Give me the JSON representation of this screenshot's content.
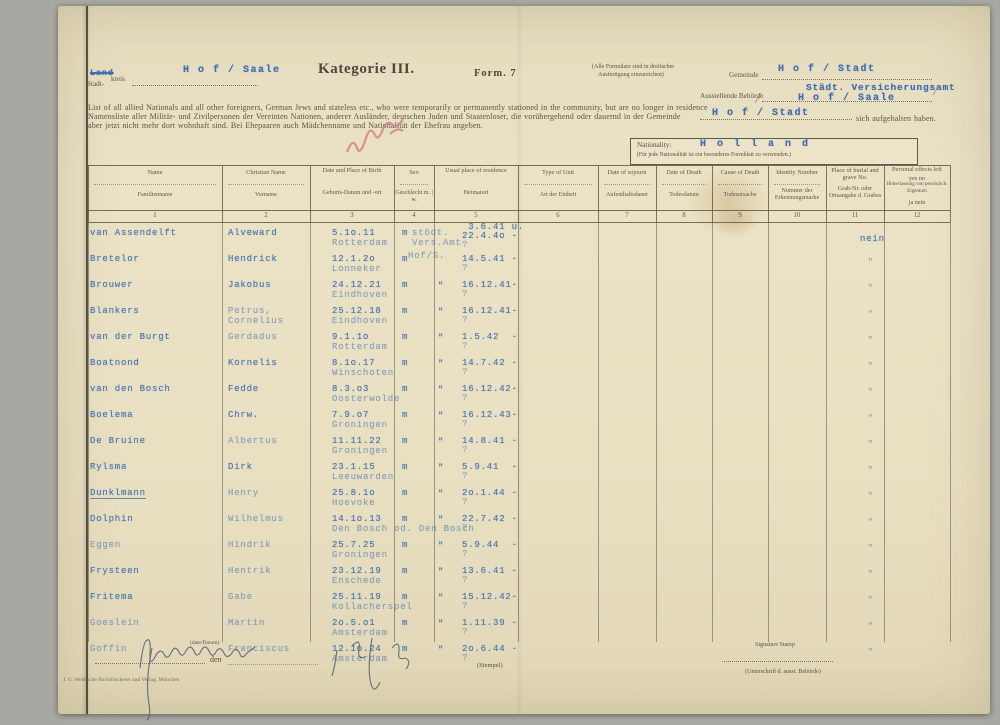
{
  "form": {
    "region_label_struck": "Land",
    "region_label_part1": "Stadt-",
    "region_label_part2": "kreis",
    "region_value": "H o f / Saale",
    "title": "Kategorie III.",
    "form_no": "Form. 7",
    "copies_note_line1": "(Alle Formulare sind in dreifacher",
    "copies_note_line2": "Ausfertigung einzureichen)",
    "gemeinde_label": "Gemeinde",
    "gemeinde_value": "H o f / Stadt",
    "behoerde_label": "Ausstellende Behörde",
    "behoerde_value_line1": "Städt. Versicherungsamt",
    "behoerde_value_line2": "H o f / Saale",
    "intro_en": "List of all allied Nationals and all other foreigners, German Jews and stateless etc., who were temporarily or permanently stationed in the community, but are no longer in residence",
    "intro_de": "Namensliste aller Militär- und Zivilpersonen der Vereinten Nationen, anderer Ausländer, deutschen Juden und Staatenloser, die vorübergehend oder dauernd in der Gemeinde",
    "intro_gemeinde_value": "H o f / Stadt",
    "intro_tail": "sich aufgehalten haben.",
    "intro_de2": "aber jetzt nicht mehr dort wohnhaft sind. Bei Ehepaaren auch Mädchenname und Nationalität der Ehefrau angeben.",
    "nationality_label": "Nationality:",
    "nationality_value": "H o l l a n d",
    "nationality_note": "(Für jede Nationalität ist ein besonderes Formblatt zu verwenden.)"
  },
  "table": {
    "columns": [
      {
        "en": "Name",
        "de": "Familienname",
        "num": "1"
      },
      {
        "en": "Christian Name",
        "de": "Vorname",
        "num": "2"
      },
      {
        "en": "Date and Place of Birth",
        "de": "Geburts-Datum und -ort",
        "num": "3"
      },
      {
        "en": "Sex",
        "de": "Geschlecht m. | w.",
        "num": "4"
      },
      {
        "en": "Usual place of residence",
        "de": "Heimatort",
        "num": "5"
      },
      {
        "en": "Type of Unit",
        "de": "Art der Einheit",
        "num": "6"
      },
      {
        "en": "Date of sojourn",
        "de": "Aufenthaltsdauer",
        "num": "7"
      },
      {
        "en": "Date of Death",
        "de": "Todesdatum",
        "num": "8"
      },
      {
        "en": "Cause of Death",
        "de": "Todesursache",
        "num": "9"
      },
      {
        "en": "Identity Number",
        "de": "Nummer der Erkennungsmarke",
        "num": "10"
      },
      {
        "en": "Place of burial and grave No.",
        "de": "Grab-Nr. oder Ortsangabe d. Grabes",
        "num": "11"
      },
      {
        "en": "Personal effects left",
        "en2": "yes            no",
        "de": "Hinterlassung von persönlich. Eigentum",
        "de2": "ja             nein",
        "num": "12"
      }
    ],
    "rows": [
      {
        "name": "van Assendelft",
        "vorname": [
          "Alveward"
        ],
        "birth_date": "5.1o.11",
        "birth_place": "Rotterdam",
        "sex": "m",
        "unit": [
          "stödt.",
          "Vers.Amt"
        ],
        "sojourn": [
          " 3.6.41 u.",
          "22.4.4o -",
          "?"
        ],
        "effects": "nein"
      },
      {
        "name": "Bretelor",
        "vorname": [
          "Hendrick"
        ],
        "birth_date": "12.1.2o",
        "birth_place": "Lonneker",
        "sex": "m",
        "unit": [
          "Hof/S."
        ],
        "sojourn": [
          "14.5.41 -",
          "?"
        ],
        "effects": "\""
      },
      {
        "name": "Brouwer",
        "vorname": [
          "Jakobus"
        ],
        "birth_date": "24.12.21",
        "birth_place": "Eindhoven",
        "sex": "m",
        "unit": [
          "\""
        ],
        "sojourn": [
          "16.12.41-",
          "?"
        ],
        "effects": "\""
      },
      {
        "name": "Blankers",
        "vorname": [
          "Petrus,",
          "Cornelius"
        ],
        "vorname_faded": true,
        "birth_date": "25.12.18",
        "birth_place": "Eindhoven",
        "sex": "m",
        "unit": [
          "\""
        ],
        "sojourn": [
          "16.12.41-",
          "?"
        ],
        "effects": "\""
      },
      {
        "name": "van der Burgt",
        "vorname": [
          "Gerdadus"
        ],
        "vorname_faded": true,
        "birth_date": "9.1.1o",
        "birth_place": "Rotterdam",
        "sex": "m",
        "unit": [
          "\""
        ],
        "sojourn": [
          "1.5.42  -",
          "?"
        ],
        "effects": "\""
      },
      {
        "name": "Boatnond",
        "vorname": [
          "Kornelis"
        ],
        "birth_date": "8.1o.17",
        "birth_place": "Winschoten",
        "sex": "m",
        "unit": [
          "\""
        ],
        "sojourn": [
          "14.7.42 -",
          "?"
        ],
        "effects": "\""
      },
      {
        "name": "van den Bosch",
        "vorname": [
          "Fedde"
        ],
        "birth_date": "8.3.o3",
        "birth_place": "Oosterwolde",
        "sex": "m",
        "unit": [
          "\""
        ],
        "sojourn": [
          "16.12.42-",
          "?"
        ],
        "effects": "\""
      },
      {
        "name": "Boelema",
        "vorname": [
          "Chrw."
        ],
        "birth_date": "7.9.o7",
        "birth_place": "Groningen",
        "sex": "m",
        "unit": [
          "\""
        ],
        "sojourn": [
          "16.12.43-",
          "?"
        ],
        "effects": "\""
      },
      {
        "name": "De Bruine",
        "vorname": [
          "Albertus"
        ],
        "vorname_faded": true,
        "birth_date": "11.11.22",
        "birth_place": "Groningen",
        "sex": "m",
        "unit": [
          "\""
        ],
        "sojourn": [
          "14.8.41 -",
          "?"
        ],
        "effects": "\""
      },
      {
        "name": "Rylsma",
        "vorname": [
          "Dirk"
        ],
        "birth_date": "23.1.15",
        "birth_place": "Leeuwarden",
        "sex": "m",
        "unit": [
          "\""
        ],
        "sojourn": [
          "5.9.41  -",
          "?"
        ],
        "effects": "\""
      },
      {
        "name": "Dunklmann",
        "underline": true,
        "vorname": [
          "Henry"
        ],
        "vorname_faded": true,
        "birth_date": "25.8.1o",
        "birth_place": "Hoevoke",
        "sex": "m",
        "unit": [
          "\""
        ],
        "sojourn": [
          "2o.1.44 -",
          "?"
        ],
        "effects": "\""
      },
      {
        "name": "Dolphin",
        "vorname": [
          "Wilhelmus"
        ],
        "vorname_faded": true,
        "birth_date": "14.1o.13",
        "birth_place": "Den Bosch od. Den Bosch",
        "sex": "m",
        "unit": [
          "\""
        ],
        "sojourn": [
          "22.7.42 -",
          "?"
        ],
        "effects": "\""
      },
      {
        "name": "Eggen",
        "name_faded": true,
        "vorname": [
          "Hindrik"
        ],
        "vorname_faded": true,
        "birth_date": "25.7.25",
        "birth_place": "Groningen",
        "sex": "m",
        "unit": [
          "\""
        ],
        "sojourn": [
          "5.9.44  -",
          "?"
        ],
        "effects": "\""
      },
      {
        "name": "Frysteen",
        "vorname": [
          "Hentrik"
        ],
        "vorname_faded": true,
        "birth_date": "23.12.19",
        "birth_place": "Enschede",
        "sex": "m",
        "unit": [
          "\""
        ],
        "sojourn": [
          "13.6.41 -",
          "?"
        ],
        "effects": "\""
      },
      {
        "name": "Fritema",
        "vorname": [
          "Gabe"
        ],
        "vorname_faded": true,
        "birth_date": "25.11.19",
        "birth_place": "Kollacherspel",
        "sex": "m",
        "unit": [
          "\""
        ],
        "sojourn": [
          "15.12.42-",
          "?"
        ],
        "effects": "\""
      },
      {
        "name": "Goeslein",
        "name_faded": true,
        "vorname": [
          "Martin"
        ],
        "vorname_faded": true,
        "birth_date": "2o.5.o1",
        "birth_place": "Amsterdam",
        "sex": "m",
        "unit": [
          "\""
        ],
        "sojourn": [
          "1.11.39 -",
          "?"
        ],
        "effects": "\""
      },
      {
        "name": "Goffin",
        "name_faded": true,
        "vorname": [
          "Franciscus"
        ],
        "vorname_faded": true,
        "birth_date": "12.1o.24",
        "birth_place": "Amsterdam",
        "sex": "m",
        "unit": [
          "\""
        ],
        "sojourn": [
          "2o.6.44 -",
          "?"
        ],
        "effects": "\""
      }
    ]
  },
  "footer": {
    "date_label_small": "(date/Datum)",
    "den_label": "den",
    "stempel_label": "(Stempel)",
    "signature_stamp_label": "Signature Stamp",
    "signature_sub_label": "(Unterschrift d. ausst. Behörde)",
    "printer_imprint": "J. G. Weiß'sche Buchdruckerei und Verlag, München"
  }
}
